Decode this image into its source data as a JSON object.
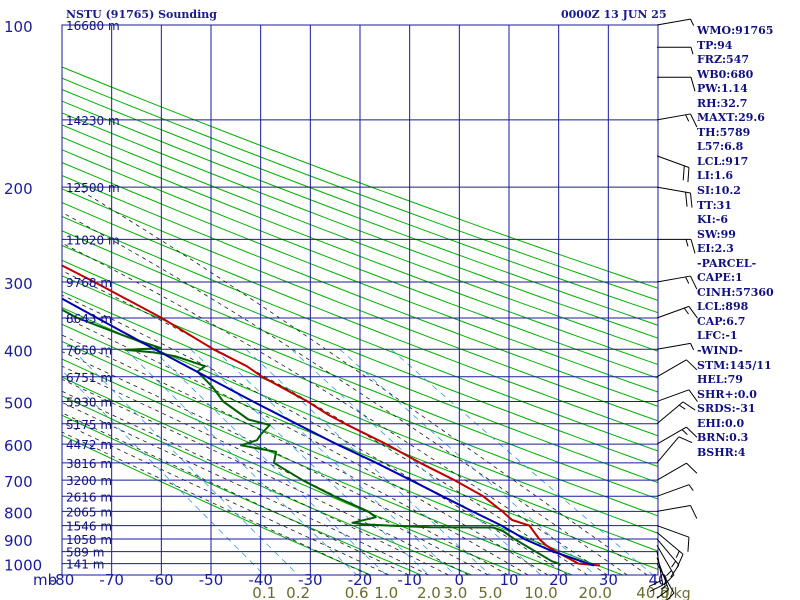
{
  "header": {
    "station": "NSTU (91765) Sounding",
    "time": "0000Z 13 JUN 25"
  },
  "side_panel": [
    "WMO:91765",
    "TP:94",
    "FRZ:547",
    "WB0:680",
    "PW:1.14",
    "RH:32.7",
    "MAXT:29.6",
    "TH:5789",
    "L57:6.8",
    "LCL:917",
    "LI:1.6",
    "SI:10.2",
    "TT:31",
    "KI:-6",
    "SW:99",
    "EI:2.3",
    "-PARCEL-",
    "CAPE:1",
    "CINH:57360",
    "LCL:898",
    "CAP:6.7",
    "LFC:-1",
    "-WIND-",
    "STM:145/11",
    "HEL:79",
    "SHR+:0.0",
    "SRDS:-31",
    "EHI:0.0",
    "BRN:0.3",
    "BSHR:4"
  ],
  "colors": {
    "grid": "#1a1a9c",
    "dry_adiabat": "#00b000",
    "moist_adiabat": "#1a1a1a",
    "mixing_ratio": "#3399dd",
    "temperature": "#c00000",
    "dewpoint": "#006000",
    "parcel": "#0000b0",
    "text": "#101080",
    "mixing_label": "#6b6b2e",
    "wind_barb": "#000000"
  },
  "chart_data": {
    "type": "skew-t",
    "title": "NSTU (91765) Sounding",
    "xlabel": "",
    "ylabel": "mb",
    "pressure_axis": {
      "label": "mb",
      "range": [
        100,
        1050
      ],
      "scale": "log",
      "ticks": [
        100,
        200,
        300,
        400,
        500,
        600,
        700,
        800,
        900,
        1000
      ],
      "tick_labels": [
        "100",
        "200",
        "300",
        "400",
        "500",
        "600",
        "700",
        "800",
        "900",
        "1000"
      ]
    },
    "temperature_axis": {
      "range": [
        -80,
        40
      ],
      "ticks": [
        -80,
        -70,
        -60,
        -50,
        -40,
        -30,
        -20,
        -10,
        0,
        10,
        20,
        30,
        40
      ],
      "tick_labels": [
        "-80",
        "-70",
        "-60",
        "-50",
        "-40",
        "-30",
        "-20",
        "-10",
        "0",
        "10",
        "20",
        "30",
        "40"
      ]
    },
    "height_labels": [
      {
        "p": 100,
        "text": "16680 m"
      },
      {
        "p": 150,
        "text": "14230 m"
      },
      {
        "p": 200,
        "text": "12500 m"
      },
      {
        "p": 250,
        "text": "11020 m"
      },
      {
        "p": 300,
        "text": "9768 m"
      },
      {
        "p": 350,
        "text": "8643 m"
      },
      {
        "p": 400,
        "text": "7650 m"
      },
      {
        "p": 450,
        "text": "6751 m"
      },
      {
        "p": 500,
        "text": "5930 m"
      },
      {
        "p": 550,
        "text": "5175 m"
      },
      {
        "p": 600,
        "text": "4472 m"
      },
      {
        "p": 650,
        "text": "3816 m"
      },
      {
        "p": 700,
        "text": "3200 m"
      },
      {
        "p": 750,
        "text": "2616 m"
      },
      {
        "p": 800,
        "text": "2065 m"
      },
      {
        "p": 850,
        "text": "1546 m"
      },
      {
        "p": 900,
        "text": "1058 m"
      },
      {
        "p": 950,
        "text": "589 m"
      },
      {
        "p": 1000,
        "text": "141 m"
      }
    ],
    "mixing_ratio_labels": [
      "0.1",
      "0.2",
      "0.6",
      "1.0",
      "2.0",
      "3.0",
      "5.0",
      "10.0",
      "20.0",
      "40.0"
    ],
    "mixing_ratio_unit": "g/kg",
    "series": [
      {
        "key": "temperature",
        "points": [
          [
            1008,
            28
          ],
          [
            1000,
            24
          ],
          [
            950,
            21.4
          ],
          [
            925,
            20.4
          ],
          [
            900,
            20
          ],
          [
            850,
            20.2
          ],
          [
            830,
            17.6
          ],
          [
            800,
            17
          ],
          [
            750,
            15.6
          ],
          [
            700,
            12.4
          ],
          [
            650,
            8.2
          ],
          [
            600,
            4.4
          ],
          [
            550,
            -0.6
          ],
          [
            530,
            -2.5
          ],
          [
            500,
            -4.6
          ],
          [
            450,
            -9.8
          ],
          [
            430,
            -11.2
          ],
          [
            400,
            -15.2
          ],
          [
            350,
            -20.6
          ],
          [
            300,
            -28.4
          ],
          [
            250,
            -38.4
          ],
          [
            200,
            -49.6
          ],
          [
            150,
            -63.4
          ],
          [
            100,
            -83.4
          ]
        ]
      },
      {
        "key": "dewpoint",
        "points": [
          [
            1008,
            20
          ],
          [
            1000,
            20
          ],
          [
            990,
            19
          ],
          [
            900,
            15
          ],
          [
            870,
            14
          ],
          [
            857,
            12.6
          ],
          [
            856,
            0
          ],
          [
            850,
            -8
          ],
          [
            845,
            -13
          ],
          [
            840,
            -15
          ],
          [
            820,
            -9.4
          ],
          [
            800,
            -10
          ],
          [
            750,
            -14.4
          ],
          [
            700,
            -18.2
          ],
          [
            650,
            -21.2
          ],
          [
            620,
            -19
          ],
          [
            603,
            -25
          ],
          [
            590,
            -21
          ],
          [
            575,
            -19.2
          ],
          [
            553,
            -16
          ],
          [
            540,
            -19.4
          ],
          [
            500,
            -21.6
          ],
          [
            470,
            -21.4
          ],
          [
            440,
            -22
          ],
          [
            430,
            -19.6
          ],
          [
            420,
            -22
          ],
          [
            412,
            -24
          ],
          [
            405,
            -28
          ],
          [
            401,
            -33
          ],
          [
            398,
            -25.6
          ],
          [
            380,
            -30.4
          ],
          [
            350,
            -37.6
          ],
          [
            300,
            -45.4
          ],
          [
            250,
            -60.4
          ],
          [
            200,
            -68.6
          ],
          [
            150,
            -76.6
          ],
          [
            130,
            -80
          ]
        ]
      },
      {
        "key": "parcel",
        "points": [
          [
            1008,
            26.8
          ],
          [
            950,
            20.8
          ],
          [
            900,
            17
          ],
          [
            850,
            14.6
          ],
          [
            800,
            11
          ],
          [
            750,
            7.4
          ],
          [
            700,
            3.6
          ],
          [
            650,
            -0.6
          ],
          [
            600,
            -5.6
          ],
          [
            550,
            -10.4
          ],
          [
            500,
            -15.6
          ],
          [
            450,
            -21
          ],
          [
            400,
            -27
          ],
          [
            350,
            -33.6
          ],
          [
            300,
            -41
          ],
          [
            250,
            -50
          ],
          [
            200,
            -60.4
          ],
          [
            150,
            -73
          ],
          [
            130,
            -80
          ]
        ]
      }
    ],
    "wind_barbs": [
      {
        "p": 1000,
        "dir": 150,
        "spd": 10
      },
      {
        "p": 975,
        "dir": 160,
        "spd": 15
      },
      {
        "p": 950,
        "dir": 170,
        "spd": 20
      },
      {
        "p": 925,
        "dir": 150,
        "spd": 15
      },
      {
        "p": 900,
        "dir": 140,
        "spd": 15
      },
      {
        "p": 875,
        "dir": 130,
        "spd": 15
      },
      {
        "p": 850,
        "dir": 110,
        "spd": 10
      },
      {
        "p": 800,
        "dir": 80,
        "spd": 10
      },
      {
        "p": 750,
        "dir": 70,
        "spd": 5
      },
      {
        "p": 700,
        "dir": 60,
        "spd": 10
      },
      {
        "p": 650,
        "dir": 40,
        "spd": 10
      },
      {
        "p": 600,
        "dir": 60,
        "spd": 15
      },
      {
        "p": 550,
        "dir": 50,
        "spd": 15
      },
      {
        "p": 500,
        "dir": 70,
        "spd": 10
      },
      {
        "p": 450,
        "dir": 60,
        "spd": 10
      },
      {
        "p": 400,
        "dir": 80,
        "spd": 5
      },
      {
        "p": 350,
        "dir": 70,
        "spd": 15
      },
      {
        "p": 300,
        "dir": 80,
        "spd": 15
      },
      {
        "p": 250,
        "dir": 90,
        "spd": 15
      },
      {
        "p": 200,
        "dir": 100,
        "spd": 20
      },
      {
        "p": 175,
        "dir": 110,
        "spd": 20
      },
      {
        "p": 150,
        "dir": 80,
        "spd": 15
      },
      {
        "p": 125,
        "dir": 90,
        "spd": 10
      },
      {
        "p": 110,
        "dir": 90,
        "spd": 5
      },
      {
        "p": 100,
        "dir": 80,
        "spd": 5
      }
    ]
  }
}
